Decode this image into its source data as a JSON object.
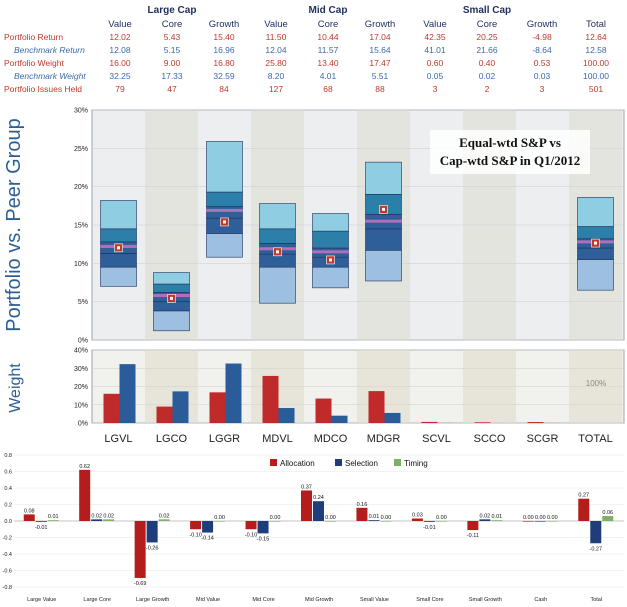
{
  "table": {
    "groups": [
      {
        "label": "Large Cap"
      },
      {
        "label": "Mid Cap"
      },
      {
        "label": "Small Cap"
      }
    ],
    "columns": [
      "Value",
      "Core",
      "Growth",
      "Value",
      "Core",
      "Growth",
      "Value",
      "Core",
      "Growth",
      "Total"
    ],
    "rows": [
      {
        "label": "Portfolio Return",
        "style": "red",
        "values": [
          "12.02",
          "5.43",
          "15.40",
          "11.50",
          "10.44",
          "17.04",
          "42.35",
          "20.25",
          "-4.98",
          "12.64"
        ]
      },
      {
        "label": "Benchmark Return",
        "style": "blue",
        "values": [
          "12.08",
          "5.15",
          "16.96",
          "12.04",
          "11.57",
          "15.64",
          "41.01",
          "21.66",
          "-8.64",
          "12.58"
        ]
      },
      {
        "label": "Portfolio Weight",
        "style": "red",
        "values": [
          "16.00",
          "9.00",
          "16.80",
          "25.80",
          "13.40",
          "17.47",
          "0.60",
          "0.40",
          "0.53",
          "100.00"
        ]
      },
      {
        "label": "Benchmark Weight",
        "style": "blue",
        "values": [
          "32.25",
          "17.33",
          "32.59",
          "8.20",
          "4.01",
          "5.51",
          "0.05",
          "0.02",
          "0.03",
          "100.00"
        ]
      },
      {
        "label": "Portfolio Issues Held",
        "style": "red",
        "values": [
          "79",
          "47",
          "84",
          "127",
          "68",
          "88",
          "3",
          "2",
          "3",
          "501"
        ]
      }
    ]
  },
  "chart_data": [
    {
      "type": "box",
      "ylabel": "Portfolio vs. Peer Group",
      "ylim": [
        0,
        30
      ],
      "yticks": [
        "0%",
        "5%",
        "10%",
        "15%",
        "20%",
        "25%",
        "30%"
      ],
      "annotation": [
        "Equal-wtd S&P vs",
        "Cap-wtd S&P in Q1/2012"
      ],
      "boxes": [
        {
          "category": "LGVL",
          "p5": 7.0,
          "p25": 9.5,
          "p40": 11.3,
          "median": 12.2,
          "p60": 12.8,
          "p75": 14.5,
          "p95": 18.2,
          "portfolio": 12.02
        },
        {
          "category": "LGCO",
          "p5": 1.2,
          "p25": 3.8,
          "p40": 5.0,
          "median": 5.8,
          "p60": 6.2,
          "p75": 7.3,
          "p95": 8.8,
          "portfolio": 5.43
        },
        {
          "category": "LGGR",
          "p5": 10.8,
          "p25": 13.9,
          "p40": 15.9,
          "median": 16.9,
          "p60": 17.4,
          "p75": 19.3,
          "p95": 25.9,
          "portfolio": 15.4
        },
        {
          "category": "MDVL",
          "p5": 4.8,
          "p25": 9.5,
          "p40": 11.2,
          "median": 11.9,
          "p60": 12.6,
          "p75": 14.5,
          "p95": 17.8,
          "portfolio": 11.5
        },
        {
          "category": "MDCO",
          "p5": 6.8,
          "p25": 9.5,
          "p40": 10.8,
          "median": 11.5,
          "p60": 12.0,
          "p75": 14.2,
          "p95": 16.5,
          "portfolio": 10.44
        },
        {
          "category": "MDGR",
          "p5": 7.7,
          "p25": 11.7,
          "p40": 14.5,
          "median": 15.5,
          "p60": 16.4,
          "p75": 19.0,
          "p95": 23.2,
          "portfolio": 17.04
        },
        {
          "category": "TOTAL",
          "p5": 6.5,
          "p25": 10.5,
          "p40": 12.0,
          "median": 12.8,
          "p60": 13.2,
          "p75": 14.8,
          "p95": 18.6,
          "portfolio": 12.64
        }
      ]
    },
    {
      "type": "bar",
      "ylabel": "Weight",
      "ylim": [
        0,
        40
      ],
      "yticks": [
        "0%",
        "10%",
        "20%",
        "30%",
        "40%"
      ],
      "categories": [
        "LGVL",
        "LGCO",
        "LGGR",
        "MDVL",
        "MDCO",
        "MDGR",
        "SCVL",
        "SCCO",
        "SCGR",
        "TOTAL"
      ],
      "series": [
        {
          "values": [
            16.0,
            9.0,
            16.8,
            25.8,
            13.4,
            17.47,
            0.6,
            0.4,
            0.53,
            null
          ]
        },
        {
          "values": [
            32.25,
            17.33,
            32.59,
            8.2,
            4.01,
            5.51,
            0.05,
            0.02,
            0.03,
            null
          ]
        }
      ],
      "total_label": "100%"
    },
    {
      "type": "bar",
      "categories": [
        "Large Value",
        "Large Core",
        "Large Growth",
        "Mid Value",
        "Mid Core",
        "Mid Growth",
        "Small Value",
        "Small Core",
        "Small Growth",
        "Cash",
        "Total"
      ],
      "ylim": [
        -0.8,
        0.8
      ],
      "yticks": [
        "-0.8",
        "-0.6",
        "-0.4",
        "-0.2",
        "0.0",
        "0.2",
        "0.4",
        "0.6",
        "0.8"
      ],
      "series": [
        {
          "name": "Allocation",
          "color": "#b51c1c",
          "values": [
            0.08,
            0.62,
            -0.69,
            -0.1,
            -0.1,
            0.37,
            0.16,
            0.03,
            -0.11,
            0.0,
            0.27
          ],
          "labels": [
            "0.08",
            "0.62",
            "-0.69",
            "-0.10",
            "-0.10",
            "0.37",
            "0.16",
            "0.03",
            "-0.11",
            "0.00",
            "0.27"
          ]
        },
        {
          "name": "Selection",
          "color": "#1f3d7a",
          "values": [
            -0.01,
            0.02,
            -0.26,
            -0.14,
            -0.15,
            0.24,
            0.01,
            -0.01,
            0.02,
            0.0,
            -0.27
          ],
          "labels": [
            "-0.01",
            "0.02",
            "-0.26",
            "-0.14",
            "-0.15",
            "0.24",
            "0.01",
            "-0.01",
            "0.02",
            "0.00",
            "-0.27"
          ]
        },
        {
          "name": "Timing",
          "color": "#7fb069",
          "values": [
            0.01,
            0.02,
            0.02,
            0.0,
            0.0,
            0.0,
            0.0,
            0.0,
            0.01,
            0.0,
            0.06
          ],
          "labels": [
            "0.01",
            "0.02",
            "0.02",
            "0.00",
            "0.00",
            "0.00",
            "0.00",
            "0.00",
            "0.01",
            "0.00",
            "0.06"
          ]
        }
      ]
    }
  ]
}
